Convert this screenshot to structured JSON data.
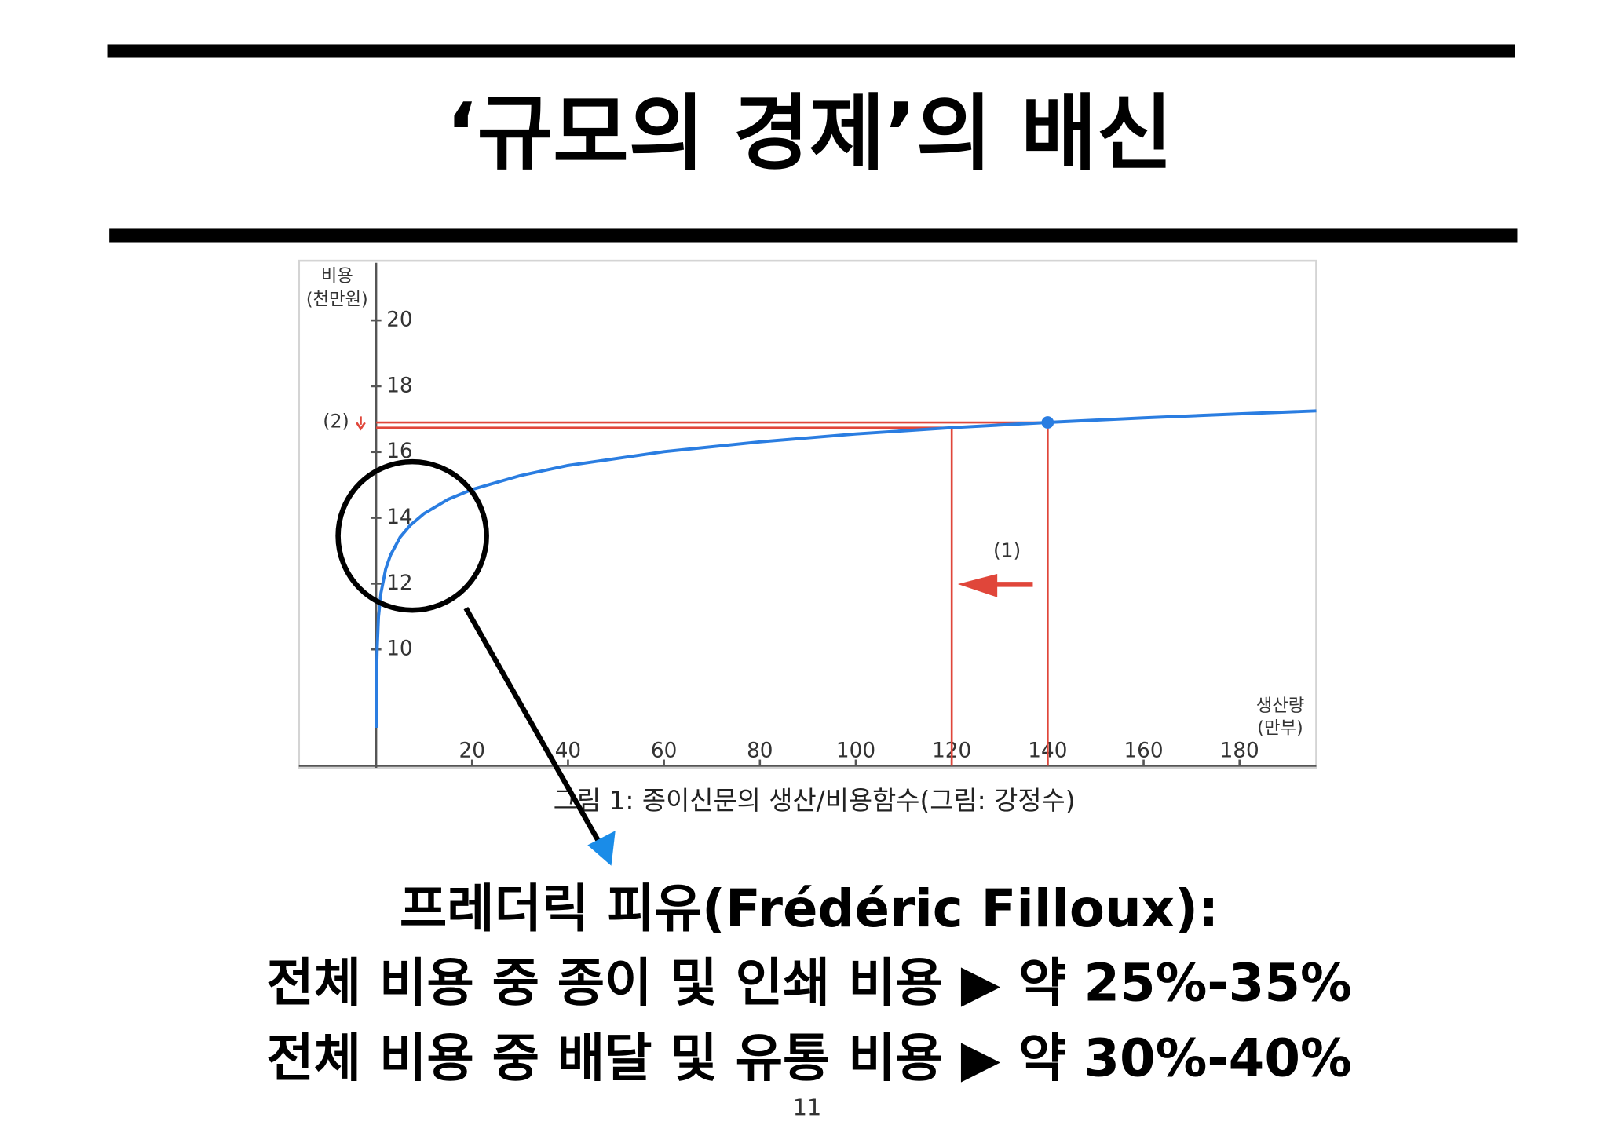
{
  "slide": {
    "title": "‘규모의 경제’의 배신",
    "lines": [
      "프레더릭 피유(Frédéric Filloux):",
      "전체 비용 중 종이 및 인쇄 비용 ▶ 약 25%-35%",
      "전체 비용 중 배달 및 유통 비용 ▶ 약 30%-40%"
    ],
    "page_number": "11"
  },
  "chart_data": {
    "type": "line",
    "ylabel": [
      "비용",
      "(천만원)"
    ],
    "xlabel": [
      "생산량",
      "(만부)"
    ],
    "caption": "그림 1: 종이신문의 생산/비용함수(그림: 강정수)",
    "annotations": [
      "(1)",
      "(2)"
    ],
    "x": [
      0.02,
      0.05,
      0.1,
      0.2,
      0.5,
      1,
      2,
      3,
      5,
      7,
      10,
      15,
      20,
      30,
      40,
      60,
      80,
      100,
      120,
      140,
      160,
      180,
      196
    ],
    "series": [
      {
        "color": "#2a7de1",
        "values": [
          7.62,
          8.58,
          9.31,
          10.03,
          10.99,
          11.72,
          12.45,
          12.87,
          13.41,
          13.76,
          14.13,
          14.56,
          14.86,
          15.28,
          15.59,
          16.01,
          16.31,
          16.55,
          16.74,
          16.9,
          17.04,
          17.16,
          17.25
        ]
      }
    ],
    "xlim": [
      -16.1,
      196
    ],
    "ylim": [
      6.4,
      21.75
    ],
    "xticks": [
      20,
      40,
      60,
      80,
      100,
      120,
      140,
      160,
      180
    ],
    "yticks": [
      10,
      12,
      14,
      16,
      18,
      20
    ],
    "vlines": [
      120,
      140
    ],
    "hlines": [
      16.74,
      16.9
    ],
    "marker": {
      "x": 140,
      "y": 16.9
    },
    "ref_color": "#e0463a"
  }
}
